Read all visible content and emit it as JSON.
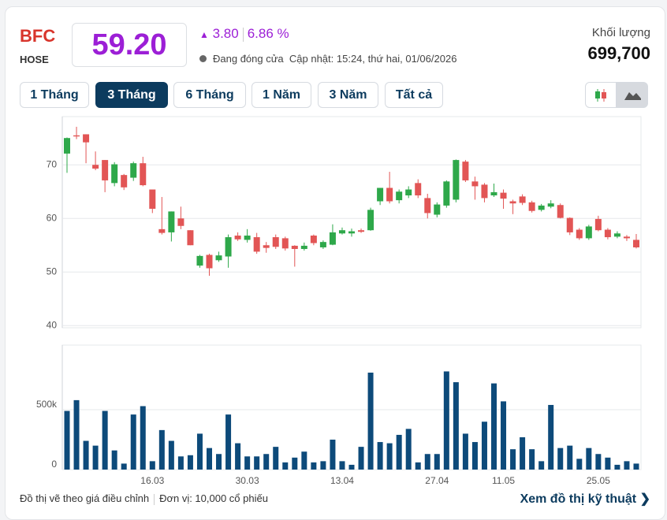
{
  "header": {
    "ticker": "BFC",
    "exchange": "HOSE",
    "price": "59.20",
    "change": "3.80",
    "change_pct": "6.86 %",
    "status": "Đang đóng cửa",
    "updated": "Cập nhật: 15:24, thứ hai, 01/06/2026",
    "volume_label": "Khối lượng",
    "volume": "699,700"
  },
  "tabs": [
    "1 Tháng",
    "3 Tháng",
    "6 Tháng",
    "1 Năm",
    "3 Năm",
    "Tất cả"
  ],
  "active_tab": 1,
  "footer": {
    "note": "Đồ thị vẽ theo giá điều chỉnh",
    "unit": "Đơn vị: 10,000 cổ phiếu",
    "link": "Xem đồ thị kỹ thuật"
  },
  "chart_data": {
    "type": "candlestick",
    "categories": [
      null,
      null,
      null,
      null,
      null,
      null,
      null,
      null,
      null,
      "16.03",
      null,
      null,
      null,
      null,
      null,
      null,
      null,
      null,
      null,
      "30.03",
      null,
      null,
      null,
      null,
      null,
      null,
      null,
      null,
      null,
      "13.04",
      null,
      null,
      null,
      null,
      null,
      null,
      null,
      null,
      null,
      "27.04",
      null,
      null,
      null,
      null,
      null,
      null,
      "11.05",
      null,
      null,
      null,
      null,
      null,
      null,
      null,
      null,
      null,
      "25.05",
      null,
      null,
      null,
      null
    ],
    "open": [
      72.1,
      75.5,
      75.7,
      70,
      70.9,
      66.6,
      68.1,
      67.6,
      70.3,
      65.4,
      58,
      57.4,
      60,
      57.8,
      51.2,
      53.2,
      52.2,
      52.9,
      56.8,
      56,
      56.5,
      55,
      56.5,
      56.3,
      54.9,
      54.3,
      56.8,
      54.6,
      55.1,
      57.2,
      57.2,
      57.8,
      57.8,
      63.2,
      65.7,
      63.4,
      64.3,
      66.6,
      63.8,
      60.7,
      62.4,
      63.5,
      70.6,
      66.9,
      66.3,
      64.3,
      64.8,
      63.2,
      64.1,
      63,
      61.6,
      62.2,
      62.5,
      60.1,
      57.9,
      56.3,
      59.9,
      57.9,
      56.6,
      56.6,
      56
    ],
    "high": [
      75.1,
      77.1,
      75.7,
      72.5,
      70.9,
      70.5,
      68.3,
      70.6,
      71.5,
      65.4,
      64,
      61.3,
      62.2,
      57.8,
      53.2,
      53.4,
      53.8,
      57,
      57.4,
      58,
      57.3,
      55.6,
      57,
      56.6,
      55,
      55.5,
      57,
      55.9,
      58.9,
      58.3,
      58.1,
      58.1,
      62,
      65.7,
      68.7,
      65.4,
      66,
      67.3,
      64.6,
      63,
      67.1,
      71,
      70.9,
      67.8,
      66.6,
      66.5,
      65.4,
      63.5,
      64.5,
      63.3,
      62.7,
      63.4,
      62.8,
      60.2,
      58.2,
      58.8,
      60.5,
      58.2,
      57.6,
      56.9,
      57.1
    ],
    "low": [
      68.5,
      74.8,
      70.3,
      69,
      64.9,
      66,
      65.3,
      67,
      66,
      61,
      57,
      55.7,
      58,
      55,
      50.8,
      49.3,
      51.9,
      50.8,
      55.8,
      55.5,
      53.4,
      53.6,
      54.3,
      54,
      51,
      54,
      55,
      54.3,
      55,
      57,
      56.6,
      57.3,
      57.7,
      62.5,
      62.8,
      62.8,
      63.8,
      63.8,
      60,
      60.2,
      62,
      63,
      66.8,
      63.5,
      63,
      64,
      61.8,
      60.8,
      62.5,
      61.1,
      61.3,
      61.9,
      60,
      56.9,
      56,
      56,
      57.6,
      56.1,
      56.3,
      55.8,
      54.4
    ],
    "close": [
      75,
      75.3,
      74.2,
      69.3,
      67.1,
      70.1,
      65.8,
      70.3,
      66.2,
      61.8,
      57.3,
      61.3,
      58.6,
      55,
      53,
      50.7,
      53.1,
      56.5,
      56.1,
      56.8,
      53.8,
      54.5,
      54.7,
      54.4,
      54.3,
      54.9,
      55.4,
      55.6,
      57.4,
      57.8,
      57.6,
      57.5,
      61.6,
      65.7,
      63.2,
      65,
      65.4,
      64.3,
      61,
      62.6,
      66.9,
      70.9,
      67.1,
      66,
      63.8,
      64.9,
      63.7,
      62.8,
      62.9,
      61.4,
      62.4,
      62.8,
      60.1,
      57.4,
      56.3,
      58.5,
      57.8,
      56.5,
      57.2,
      56.3,
      54.6
    ],
    "volume": [
      490000,
      580000,
      240000,
      200000,
      490000,
      160000,
      50000,
      460000,
      530000,
      70000,
      330000,
      240000,
      110000,
      120000,
      300000,
      180000,
      130000,
      460000,
      220000,
      110000,
      110000,
      130000,
      190000,
      60000,
      100000,
      150000,
      60000,
      70000,
      250000,
      70000,
      40000,
      190000,
      810000,
      230000,
      220000,
      290000,
      340000,
      60000,
      130000,
      130000,
      820000,
      730000,
      300000,
      230000,
      400000,
      720000,
      570000,
      170000,
      270000,
      170000,
      70000,
      540000,
      180000,
      200000,
      90000,
      180000,
      130000,
      100000,
      40000,
      70000,
      50000
    ],
    "up_color": "#2ea84a",
    "down_color": "#e25555",
    "volume_color": "#0d4a7a",
    "ylim": [
      39.6,
      79
    ],
    "yticks": [
      40,
      50,
      60,
      70
    ],
    "y2lim": [
      0,
      1040000
    ],
    "y2ticks": [
      0,
      {
        "value": 500000,
        "label": "500k"
      }
    ],
    "grid": true
  }
}
